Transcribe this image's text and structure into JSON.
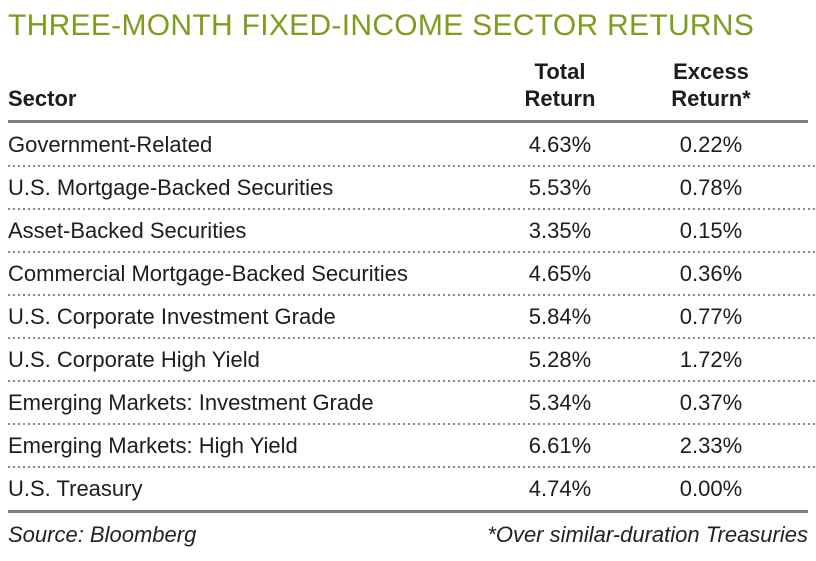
{
  "title": "THREE-MONTH FIXED-INCOME SECTOR RETURNS",
  "table": {
    "columns": {
      "sector": "Sector",
      "total": [
        "Total",
        "Return"
      ],
      "excess": [
        "Excess",
        "Return*"
      ]
    },
    "rows": [
      {
        "sector": "Government-Related",
        "total_return": "4.63%",
        "excess_return": "0.22%"
      },
      {
        "sector": "U.S. Mortgage-Backed Securities",
        "total_return": "5.53%",
        "excess_return": "0.78%"
      },
      {
        "sector": "Asset-Backed Securities",
        "total_return": "3.35%",
        "excess_return": "0.15%"
      },
      {
        "sector": "Commercial Mortgage-Backed Securities",
        "total_return": "4.65%",
        "excess_return": "0.36%"
      },
      {
        "sector": "U.S. Corporate Investment Grade",
        "total_return": "5.84%",
        "excess_return": "0.77%"
      },
      {
        "sector": "U.S. Corporate High Yield",
        "total_return": "5.28%",
        "excess_return": "1.72%"
      },
      {
        "sector": "Emerging Markets: Investment Grade",
        "total_return": "5.34%",
        "excess_return": "0.37%"
      },
      {
        "sector": "Emerging Markets: High Yield",
        "total_return": "6.61%",
        "excess_return": "2.33%"
      },
      {
        "sector": "U.S. Treasury",
        "total_return": "4.74%",
        "excess_return": "0.00%"
      }
    ]
  },
  "footer": {
    "source": "Source: Bloomberg",
    "note": "*Over similar-duration Treasuries"
  },
  "colors": {
    "title_green": "#7e9c1d",
    "rule_gray": "#7f7f7f",
    "dot_gray": "#8a8a8a",
    "text": "#1d1d1d"
  },
  "chart_data": {
    "type": "table",
    "title": "THREE-MONTH FIXED-INCOME SECTOR RETURNS",
    "columns": [
      "Sector",
      "Total Return",
      "Excess Return*"
    ],
    "units": "percent",
    "rows": [
      [
        "Government-Related",
        4.63,
        0.22
      ],
      [
        "U.S. Mortgage-Backed Securities",
        5.53,
        0.78
      ],
      [
        "Asset-Backed Securities",
        3.35,
        0.15
      ],
      [
        "Commercial Mortgage-Backed Securities",
        4.65,
        0.36
      ],
      [
        "U.S. Corporate Investment Grade",
        5.84,
        0.77
      ],
      [
        "U.S. Corporate High Yield",
        5.28,
        1.72
      ],
      [
        "Emerging Markets: Investment Grade",
        5.34,
        0.37
      ],
      [
        "Emerging Markets: High Yield",
        6.61,
        2.33
      ],
      [
        "U.S. Treasury",
        4.74,
        0.0
      ]
    ],
    "source": "Bloomberg",
    "note": "*Over similar-duration Treasuries"
  }
}
